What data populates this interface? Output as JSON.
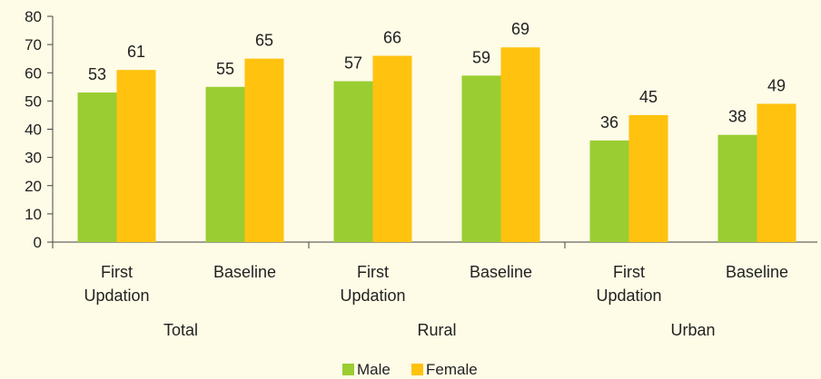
{
  "chart_data": {
    "type": "bar",
    "groups": [
      {
        "label": "Total",
        "categories": [
          "First Updation",
          "Baseline"
        ]
      },
      {
        "label": "Rural",
        "categories": [
          "First Updation",
          "Baseline"
        ]
      },
      {
        "label": "Urban",
        "categories": [
          "First Updation",
          "Baseline"
        ]
      }
    ],
    "categories": [
      [
        "First",
        "Updation"
      ],
      [
        "Baseline"
      ],
      [
        "First",
        "Updation"
      ],
      [
        "Baseline"
      ],
      [
        "First",
        "Updation"
      ],
      [
        "Baseline"
      ]
    ],
    "series": [
      {
        "name": "Male",
        "color": "#9acd32",
        "values": [
          53,
          55,
          57,
          59,
          36,
          38
        ]
      },
      {
        "name": "Female",
        "color": "#ffc20e",
        "values": [
          61,
          65,
          66,
          69,
          45,
          49
        ]
      }
    ],
    "title": "",
    "xlabel": "",
    "ylabel": "",
    "ylim": [
      0,
      80
    ],
    "yticks": [
      0,
      10,
      20,
      30,
      40,
      50,
      60,
      70,
      80
    ],
    "grid": false,
    "legend": "bottom-center"
  }
}
